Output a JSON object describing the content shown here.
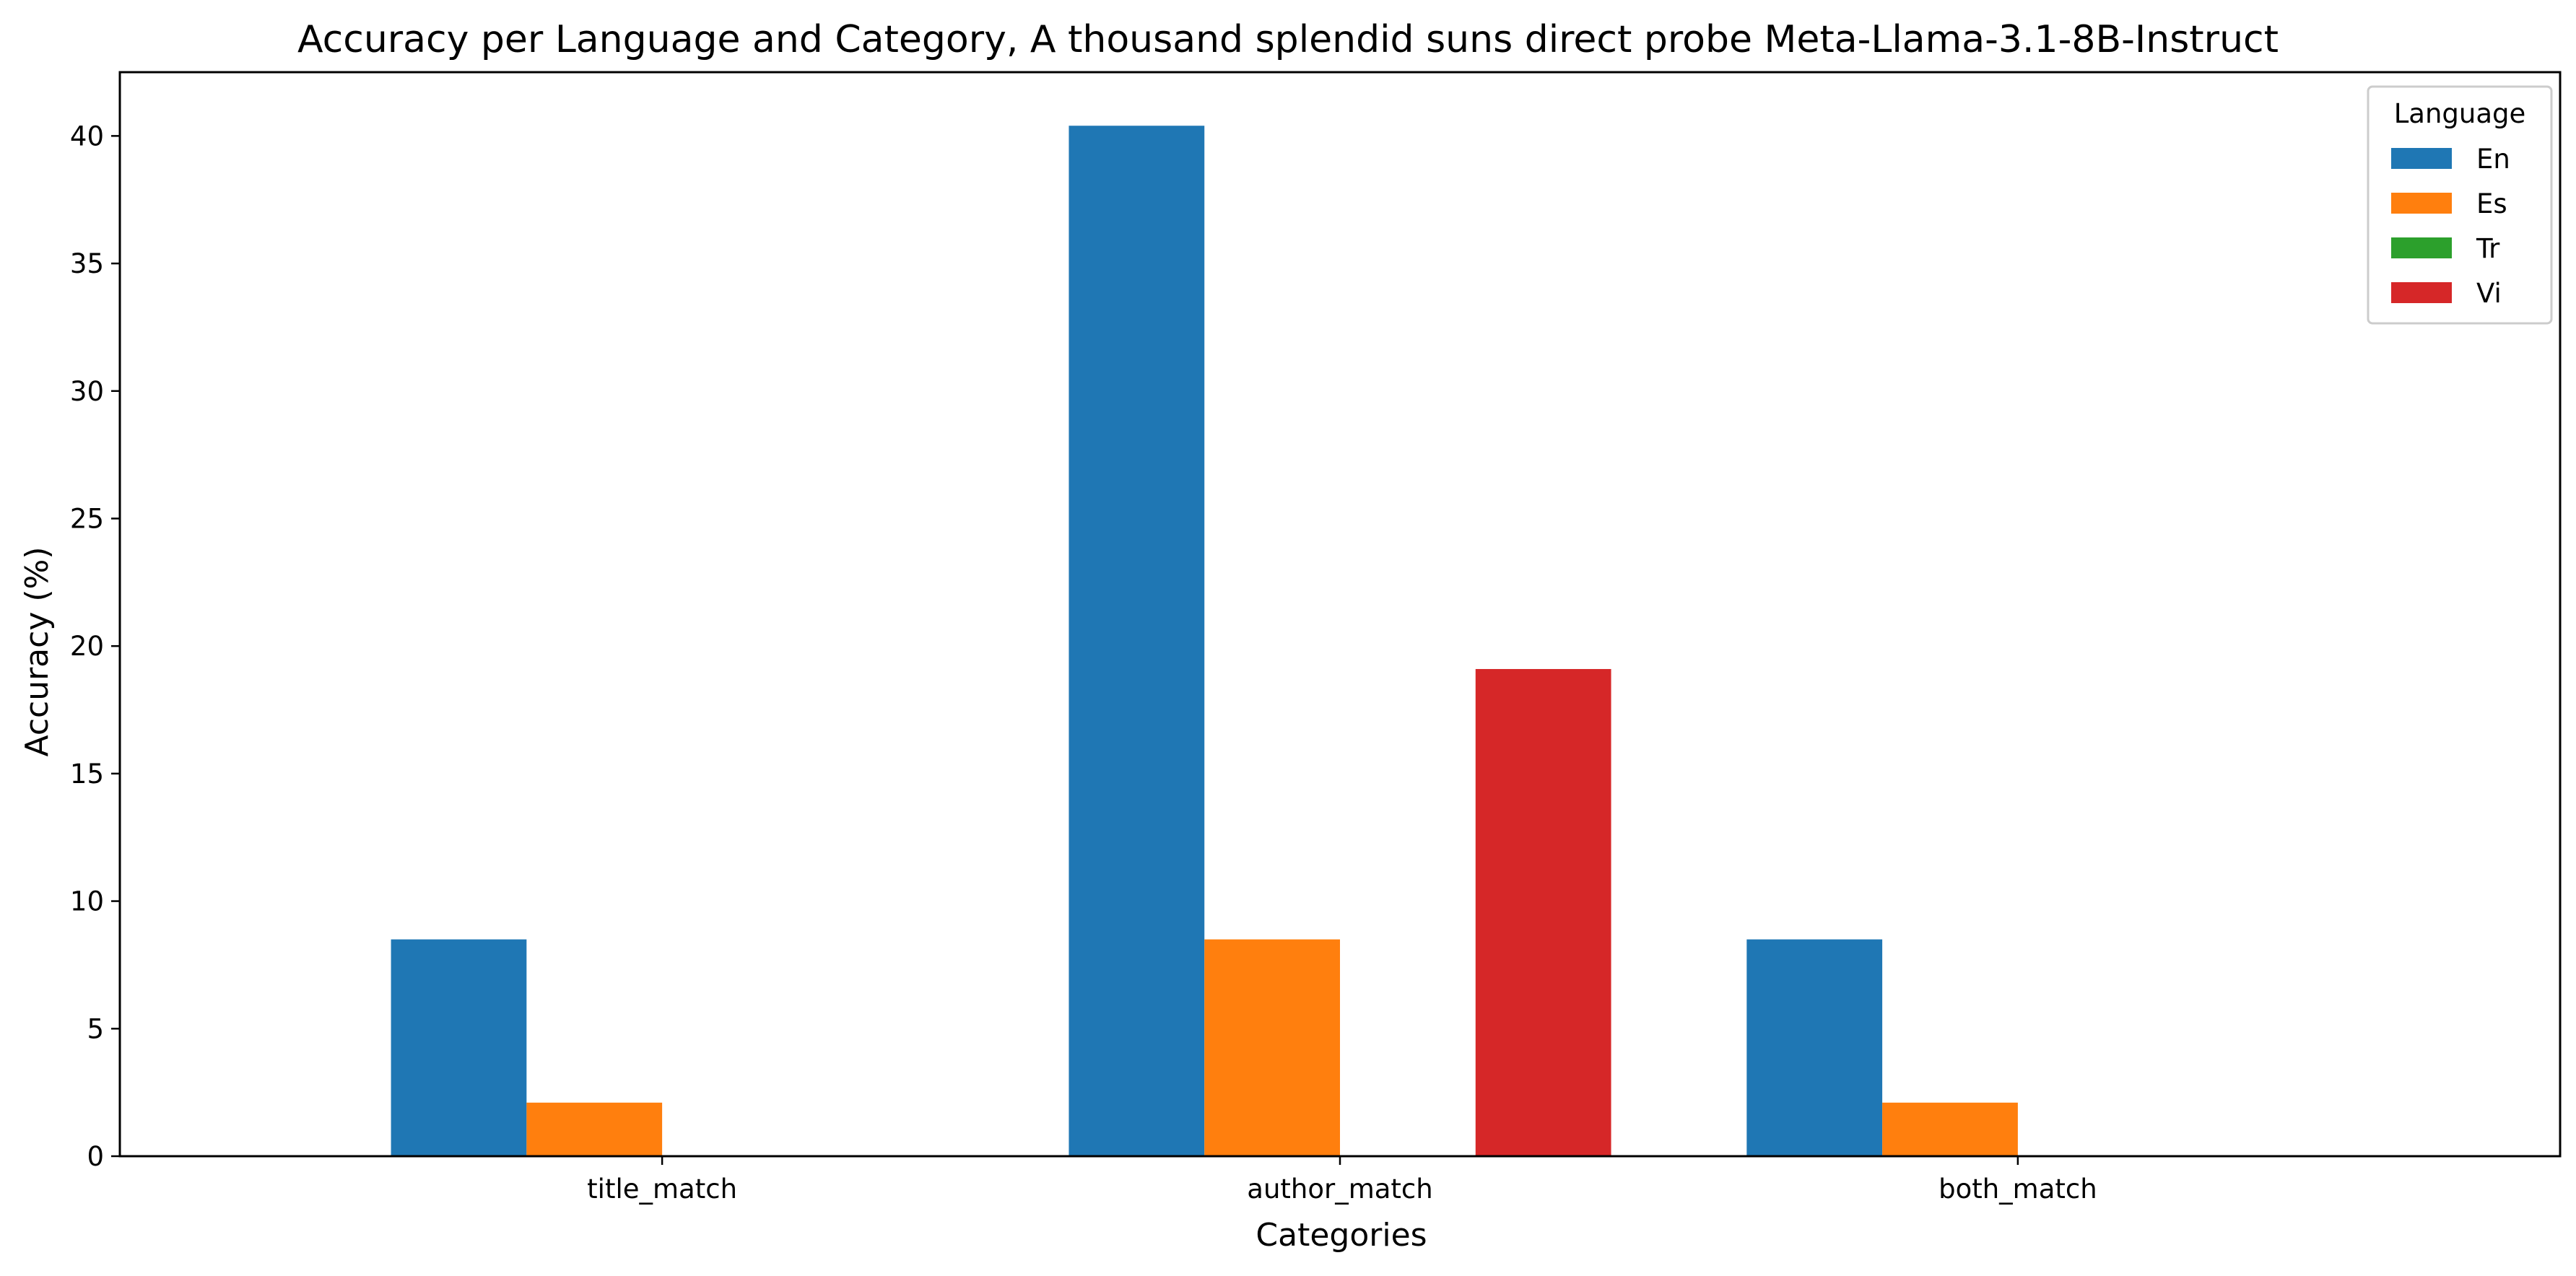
{
  "chart_data": {
    "type": "bar",
    "title": "Accuracy per Language and Category, A thousand splendid suns direct probe Meta-Llama-3.1-8B-Instruct",
    "xlabel": "Categories",
    "ylabel": "Accuracy (%)",
    "categories": [
      "title_match",
      "author_match",
      "both_match"
    ],
    "series": [
      {
        "name": "En",
        "color": "#1f77b4",
        "values": [
          8.5,
          40.4,
          8.5
        ]
      },
      {
        "name": "Es",
        "color": "#ff7f0e",
        "values": [
          2.1,
          8.5,
          2.1
        ]
      },
      {
        "name": "Tr",
        "color": "#2ca02c",
        "values": [
          0,
          0,
          0
        ]
      },
      {
        "name": "Vi",
        "color": "#d62728",
        "values": [
          0,
          19.1,
          0
        ]
      }
    ],
    "ylim": [
      0,
      42.5
    ],
    "yticks": [
      "0",
      "5",
      "10",
      "15",
      "20",
      "25",
      "30",
      "35",
      "40"
    ],
    "legend": {
      "title": "Language",
      "position": "top-right"
    },
    "grid": false
  }
}
